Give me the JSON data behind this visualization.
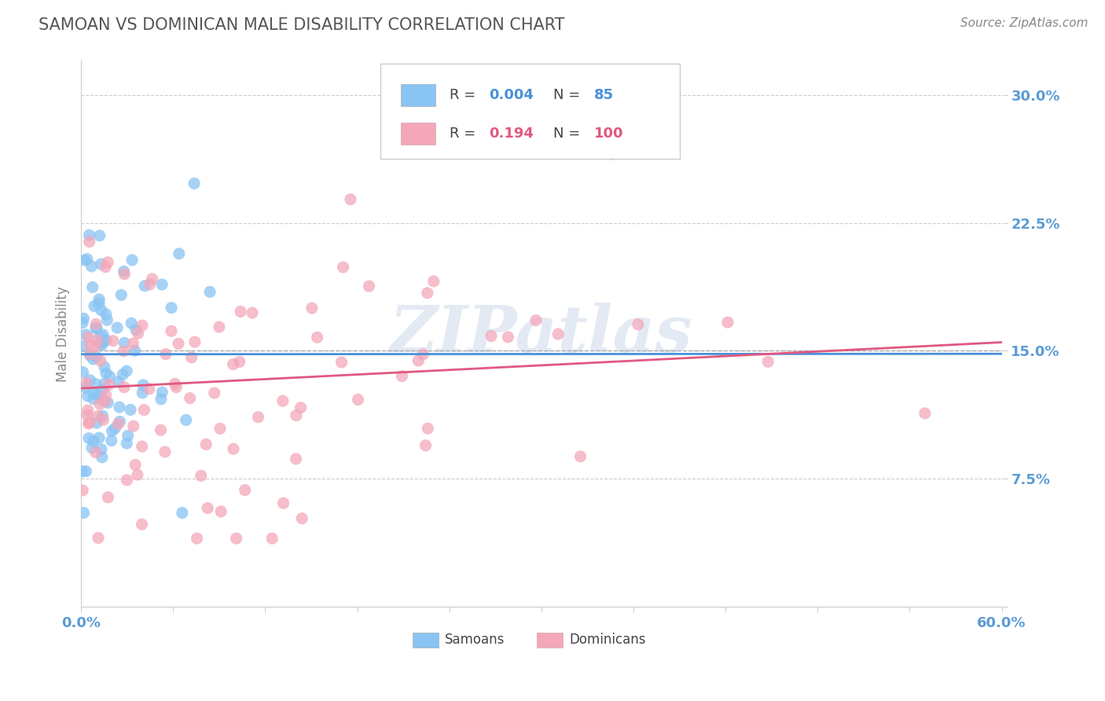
{
  "title": "SAMOAN VS DOMINICAN MALE DISABILITY CORRELATION CHART",
  "source": "Source: ZipAtlas.com",
  "ylabel": "Male Disability",
  "xlim": [
    0.0,
    0.6
  ],
  "ylim": [
    0.0,
    0.32
  ],
  "yticks": [
    0.0,
    0.075,
    0.15,
    0.225,
    0.3
  ],
  "yticklabels": [
    "",
    "7.5%",
    "15.0%",
    "22.5%",
    "30.0%"
  ],
  "ref_line_y": 0.15,
  "samoan_color": "#89c4f4",
  "dominican_color": "#f4a7b9",
  "samoan_line_color": "#4a90d9",
  "dominican_line_color": "#e05880",
  "background_color": "#ffffff",
  "grid_color": "#cccccc",
  "axis_label_color": "#5b9bd5",
  "watermark": "ZIPatlas"
}
